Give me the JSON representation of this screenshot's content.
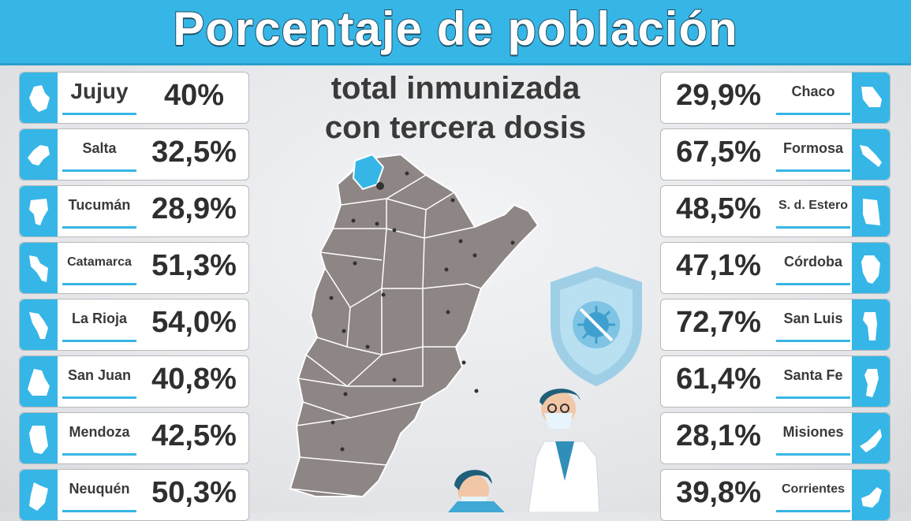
{
  "title": "Porcentaje de población",
  "subtitle_line1": "total inmunizada",
  "subtitle_line2": "con tercera dosis",
  "colors": {
    "accent": "#36b6e6",
    "card_bg": "#ffffff",
    "text": "#2f2f2f",
    "map": "#8e8585",
    "highlight": "#36b6e6"
  },
  "left_provinces": [
    {
      "name": "Jujuy",
      "pct": "40%"
    },
    {
      "name": "Salta",
      "pct": "32,5%"
    },
    {
      "name": "Tucumán",
      "pct": "28,9%"
    },
    {
      "name": "Catamarca",
      "pct": "51,3%"
    },
    {
      "name": "La Rioja",
      "pct": "54,0%"
    },
    {
      "name": "San Juan",
      "pct": "40,8%"
    },
    {
      "name": "Mendoza",
      "pct": "42,5%"
    },
    {
      "name": "Neuquén",
      "pct": "50,3%"
    }
  ],
  "right_provinces": [
    {
      "name": "Chaco",
      "pct": "29,9%"
    },
    {
      "name": "Formosa",
      "pct": "67,5%"
    },
    {
      "name": "S. d. Estero",
      "pct": "48,5%"
    },
    {
      "name": "Córdoba",
      "pct": "47,1%"
    },
    {
      "name": "San Luis",
      "pct": "72,7%"
    },
    {
      "name": "Santa Fe",
      "pct": "61,4%"
    },
    {
      "name": "Misiones",
      "pct": "28,1%"
    },
    {
      "name": "Corrientes",
      "pct": "39,8%"
    }
  ],
  "icons": [
    "province-silhouette-icon",
    "virus-shield-icon",
    "argentina-map"
  ]
}
